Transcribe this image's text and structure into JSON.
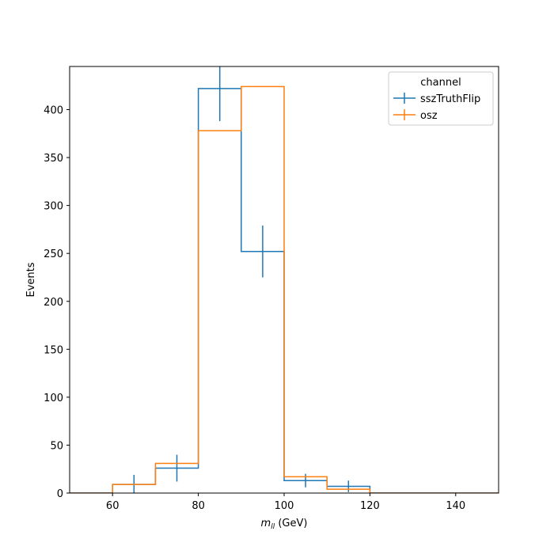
{
  "chart_data": {
    "type": "histogram",
    "xlabel_main": "m",
    "xlabel_sub": "ll",
    "xlabel_unit": " (GeV)",
    "ylabel": "Events",
    "xlim": [
      50,
      150
    ],
    "ylim": [
      0,
      445
    ],
    "xticks": [
      60,
      80,
      100,
      120,
      140
    ],
    "yticks": [
      0,
      50,
      100,
      150,
      200,
      250,
      300,
      350,
      400
    ],
    "bin_edges": [
      50,
      60,
      70,
      80,
      90,
      100,
      110,
      120,
      130,
      140,
      150
    ],
    "grid": false,
    "legend": {
      "title": "channel",
      "placement": "top-right"
    },
    "series": [
      {
        "name": "sszTruthFlip",
        "color": "#1f77b4",
        "values": [
          0,
          9,
          26,
          422,
          252,
          13,
          7,
          0,
          0,
          0
        ],
        "errors": [
          0,
          10,
          14,
          34,
          27,
          7,
          6,
          0,
          0,
          0
        ]
      },
      {
        "name": "osz",
        "color": "#ff7f0e",
        "values": [
          0,
          9,
          31,
          378,
          424,
          17,
          4,
          0,
          0,
          0
        ]
      }
    ]
  }
}
